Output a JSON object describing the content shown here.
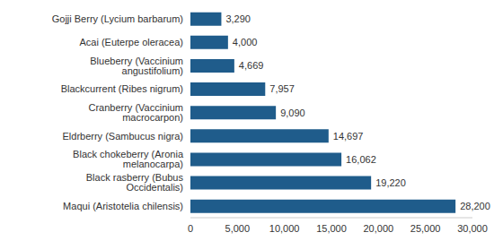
{
  "chart_data": {
    "type": "bar",
    "orientation": "horizontal",
    "categories": [
      "Gojji Berry (Lycium barbarum)",
      "Acai (Euterpe oleracea)",
      "Blueberry (Vaccinium angustifolium)",
      "Blackcurrent (Ribes nigrum)",
      "Cranberry (Vaccinium macrocarpon)",
      "Eldrberry (Sambucus nigra)",
      "Black chokeberry (Aronia melanocarpa)",
      "Black rasberry (Bubus Occidentalis)",
      "Maqui (Aristotelia chilensis)"
    ],
    "values": [
      3290,
      4000,
      4669,
      7957,
      9090,
      14697,
      16062,
      19220,
      28200
    ],
    "value_labels": [
      "3,290",
      "4,000",
      "4,669",
      "7,957",
      "9,090",
      "14,697",
      "16,062",
      "19,220",
      "28,200"
    ],
    "data_labels": true,
    "color": "#1f5c8b",
    "xlim": [
      0,
      30000
    ],
    "xticks": [
      0,
      {
        "value": 5000,
        "label": "5,000"
      },
      {
        "value": 10000,
        "label": "10,000"
      },
      {
        "value": 15000,
        "label": "15,000"
      },
      {
        "value": 20000,
        "label": "20,000"
      },
      {
        "value": 25000,
        "label": "25,000"
      },
      {
        "value": 30000,
        "label": "30,000"
      }
    ],
    "grid": false
  }
}
